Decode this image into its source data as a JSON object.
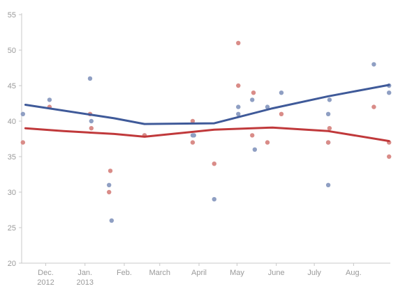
{
  "chart_data": {
    "type": "scatter",
    "title": "",
    "xlabel": "",
    "ylabel": "",
    "ylim": [
      20,
      55
    ],
    "yticks": [
      20,
      25,
      30,
      35,
      40,
      45,
      50,
      55
    ],
    "xlim": [
      "2012-11-12",
      "2013-08-30"
    ],
    "xticks": [
      {
        "date": "2012-12-01",
        "label": "Dec.",
        "sublabel": "2012"
      },
      {
        "date": "2013-01-01",
        "label": "Jan.",
        "sublabel": "2013"
      },
      {
        "date": "2013-02-01",
        "label": "Feb.",
        "sublabel": ""
      },
      {
        "date": "2013-03-01",
        "label": "March",
        "sublabel": ""
      },
      {
        "date": "2013-04-01",
        "label": "April",
        "sublabel": ""
      },
      {
        "date": "2013-05-01",
        "label": "May",
        "sublabel": ""
      },
      {
        "date": "2013-06-01",
        "label": "June",
        "sublabel": ""
      },
      {
        "date": "2013-07-01",
        "label": "July",
        "sublabel": ""
      },
      {
        "date": "2013-08-01",
        "label": "Aug.",
        "sublabel": ""
      }
    ],
    "grid": false,
    "series": [
      {
        "color": "#3f5a99",
        "dot_color": "#8f9fc3",
        "points": [
          {
            "x": "2012-11-13",
            "y": 41
          },
          {
            "x": "2012-12-04",
            "y": 43
          },
          {
            "x": "2013-01-05",
            "y": 46
          },
          {
            "x": "2013-01-06",
            "y": 40
          },
          {
            "x": "2013-01-20",
            "y": 31
          },
          {
            "x": "2013-01-22",
            "y": 26
          },
          {
            "x": "2013-02-17",
            "y": 38
          },
          {
            "x": "2013-03-27",
            "y": 38
          },
          {
            "x": "2013-03-28",
            "y": 38
          },
          {
            "x": "2013-04-13",
            "y": 29
          },
          {
            "x": "2013-05-02",
            "y": 42
          },
          {
            "x": "2013-05-02",
            "y": 41
          },
          {
            "x": "2013-05-13",
            "y": 43
          },
          {
            "x": "2013-05-15",
            "y": 36
          },
          {
            "x": "2013-05-25",
            "y": 42
          },
          {
            "x": "2013-06-05",
            "y": 44
          },
          {
            "x": "2013-07-12",
            "y": 41
          },
          {
            "x": "2013-07-12",
            "y": 31
          },
          {
            "x": "2013-07-13",
            "y": 43
          },
          {
            "x": "2013-07-12",
            "y": 37
          },
          {
            "x": "2013-08-17",
            "y": 48
          },
          {
            "x": "2013-08-29",
            "y": 45
          },
          {
            "x": "2013-08-29",
            "y": 44
          }
        ],
        "trend": [
          {
            "x": "2012-11-15",
            "y": 42.3
          },
          {
            "x": "2013-01-24",
            "y": 40.4
          },
          {
            "x": "2013-02-17",
            "y": 39.6
          },
          {
            "x": "2013-04-13",
            "y": 39.7
          },
          {
            "x": "2013-05-29",
            "y": 41.8
          },
          {
            "x": "2013-07-12",
            "y": 43.5
          },
          {
            "x": "2013-08-29",
            "y": 45.1
          }
        ]
      },
      {
        "color": "#c0393b",
        "dot_color": "#d98c88",
        "points": [
          {
            "x": "2012-11-13",
            "y": 37
          },
          {
            "x": "2012-12-04",
            "y": 42
          },
          {
            "x": "2013-01-05",
            "y": 41
          },
          {
            "x": "2013-01-06",
            "y": 39
          },
          {
            "x": "2013-01-21",
            "y": 33
          },
          {
            "x": "2013-01-20",
            "y": 30
          },
          {
            "x": "2013-02-17",
            "y": 38
          },
          {
            "x": "2013-03-27",
            "y": 40
          },
          {
            "x": "2013-03-27",
            "y": 37
          },
          {
            "x": "2013-04-13",
            "y": 34
          },
          {
            "x": "2013-05-02",
            "y": 51
          },
          {
            "x": "2013-05-02",
            "y": 45
          },
          {
            "x": "2013-05-14",
            "y": 44
          },
          {
            "x": "2013-05-13",
            "y": 38
          },
          {
            "x": "2013-05-25",
            "y": 37
          },
          {
            "x": "2013-06-05",
            "y": 41
          },
          {
            "x": "2013-07-13",
            "y": 39
          },
          {
            "x": "2013-07-12",
            "y": 37
          },
          {
            "x": "2013-08-17",
            "y": 42
          },
          {
            "x": "2013-08-29",
            "y": 37
          },
          {
            "x": "2013-08-29",
            "y": 35
          }
        ],
        "trend": [
          {
            "x": "2012-11-15",
            "y": 39.0
          },
          {
            "x": "2012-12-15",
            "y": 38.6
          },
          {
            "x": "2013-01-24",
            "y": 38.2
          },
          {
            "x": "2013-02-17",
            "y": 37.8
          },
          {
            "x": "2013-04-13",
            "y": 38.8
          },
          {
            "x": "2013-05-29",
            "y": 39.1
          },
          {
            "x": "2013-07-12",
            "y": 38.6
          },
          {
            "x": "2013-08-29",
            "y": 37.2
          }
        ]
      }
    ],
    "axis_color": "#c8c8c8",
    "tick_label_color": "#9a9a9a"
  }
}
